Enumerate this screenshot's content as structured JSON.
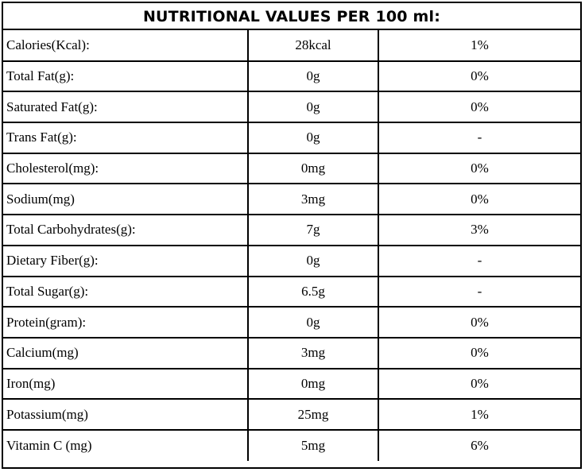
{
  "title": "NUTRITIONAL VALUES PER 100 ml:",
  "rows": [
    {
      "nutrient": "Calories(Kcal):",
      "amount": "28kcal",
      "daily_value": "1%"
    },
    {
      "nutrient": "Total Fat(g):",
      "amount": "0g",
      "daily_value": "0%"
    },
    {
      "nutrient": "Saturated Fat(g):",
      "amount": "0g",
      "daily_value": "0%"
    },
    {
      "nutrient": "Trans Fat(g):",
      "amount": "0g",
      "daily_value": "-"
    },
    {
      "nutrient": "Cholesterol(mg):",
      "amount": "0mg",
      "daily_value": "0%"
    },
    {
      "nutrient": "Sodium(mg)",
      "amount": "3mg",
      "daily_value": "0%"
    },
    {
      "nutrient": "Total Carbohydrates(g):",
      "amount": "7g",
      "daily_value": "3%"
    },
    {
      "nutrient": "Dietary Fiber(g):",
      "amount": "0g",
      "daily_value": "-"
    },
    {
      "nutrient": "Total Sugar(g):",
      "amount": "6.5g",
      "daily_value": "-"
    },
    {
      "nutrient": "Protein(gram):",
      "amount": "0g",
      "daily_value": "0%"
    },
    {
      "nutrient": "Calcium(mg)",
      "amount": "3mg",
      "daily_value": "0%"
    },
    {
      "nutrient": "Iron(mg)",
      "amount": "0mg",
      "daily_value": "0%"
    },
    {
      "nutrient": "Potassium(mg)",
      "amount": "25mg",
      "daily_value": "1%"
    },
    {
      "nutrient": "Vitamin C (mg)",
      "amount": "5mg",
      "daily_value": "6%"
    }
  ]
}
